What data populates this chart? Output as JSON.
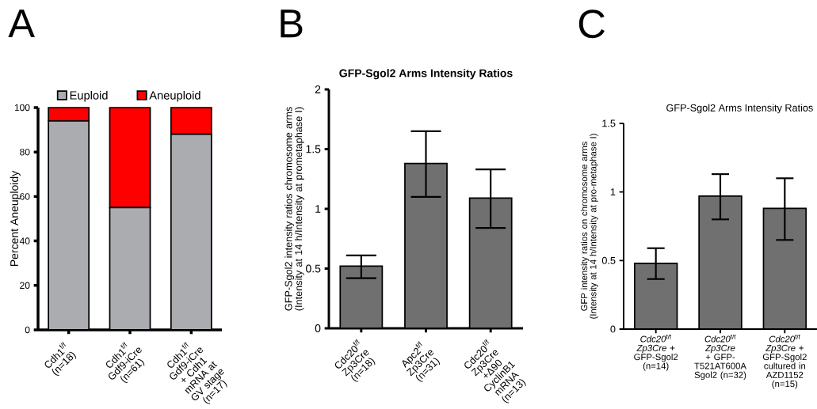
{
  "chart_data": [
    {
      "type": "bar",
      "stacked": true,
      "ylabel": "Percent Aneuploidy",
      "categories": [
        "Cdh1$^{f/f}$ (n=18)",
        "Cdh1$^{f/f}$ Gdf9-iCre (n=61)",
        "Cdh1$^{f/f}$ Gdf9-iCre + Cdh1 mRNA at GV stage (n=17)"
      ],
      "series": [
        {
          "name": "Euploid",
          "color": "#abacb0",
          "values": [
            94,
            55,
            88
          ]
        },
        {
          "name": "Aneuploid",
          "color": "#ff0000",
          "values": [
            6,
            45,
            12
          ]
        }
      ],
      "ylim": [
        0,
        100
      ],
      "yticks": [
        0,
        20,
        40,
        60,
        80,
        100
      ],
      "legend": "top",
      "annotations": [
        "A"
      ]
    },
    {
      "type": "bar",
      "title": "GFP-Sgol2 Arms Intensity Ratios",
      "ylabel": "GFP-Sgol2 intensity ratios chromosome arms (Intensity at 14 h/Intensity at prometaphase I)",
      "categories": [
        "Cdc20$^{f/f}$ Zp3Cre (n=18)",
        "Apc2$^{f/f}$ Zp3Cre (n=31)",
        "Cdc20$^{f/f}$ Zp3Cre +Δ90 CyclinB1 mRNA (n=13)"
      ],
      "values": [
        0.52,
        1.38,
        1.09
      ],
      "errors": [
        [
          0.42,
          0.61
        ],
        [
          1.1,
          1.65
        ],
        [
          0.84,
          1.33
        ]
      ],
      "color": "#707070",
      "ylim": [
        0,
        2
      ],
      "yticks": [
        0,
        0.5,
        1,
        1.5,
        2
      ],
      "annotations": [
        "B"
      ]
    },
    {
      "type": "bar",
      "title": "GFP-Sgol2 Arms Intensity Ratios",
      "ylabel": "GFP intensity ratios on chromosome arms (Intensity at 14 h/Intensity at pro-metaphase I)",
      "categories": [
        "*Cdc20*$^{f/f}$ *Zp3Cre* + GFP-Sgol2 (n=14)",
        "*Cdc20*$^{f/f}$ *Zp3Cre* + GFP- T521AT600A Sgol2 (n=32)",
        "*Cdc20*$^{f/f}$ *Zp3Cre* + GFP-Sgol2 cultured in AZD1152 (n=15)"
      ],
      "values": [
        0.48,
        0.97,
        0.88
      ],
      "errors": [
        [
          0.365,
          0.59
        ],
        [
          0.8,
          1.13
        ],
        [
          0.65,
          1.1
        ]
      ],
      "color": "#707070",
      "ylim": [
        0,
        1.5
      ],
      "yticks": [
        0,
        0.5,
        1,
        1.5
      ],
      "annotations": [
        "C"
      ]
    }
  ]
}
